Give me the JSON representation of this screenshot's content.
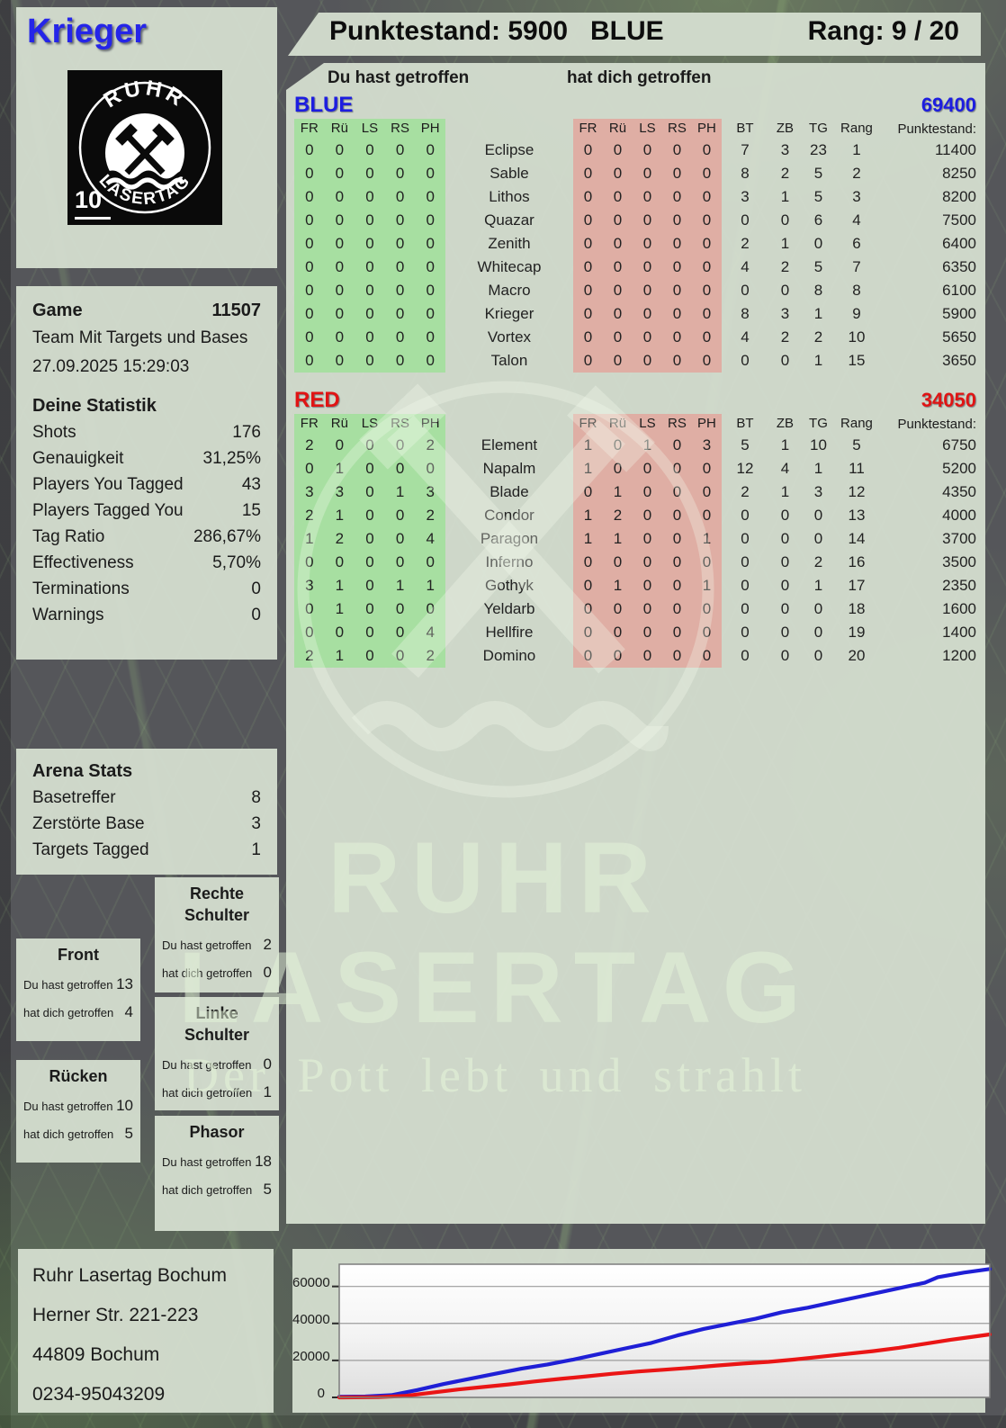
{
  "player": {
    "name": "Krieger",
    "pack_number": "10"
  },
  "logo": {
    "brand_top": "RUHR",
    "brand_bottom": "LASERTAG"
  },
  "header": {
    "punktestand_text": "Punktestand: 5900",
    "team": "BLUE",
    "rang_text": "Rang: 9 / 20"
  },
  "legend": {
    "you_hit": "Du hast getroffen",
    "hit_you": "hat dich getroffen"
  },
  "game_info": {
    "game_label": "Game",
    "game_number": "11507",
    "mode": "Team Mit Targets und Bases",
    "datetime": "27.09.2025 15:29:03"
  },
  "deine_statistik": {
    "title": "Deine Statistik",
    "rows": [
      {
        "label": "Shots",
        "value": "176"
      },
      {
        "label": "Genauigkeit",
        "value": "31,25%"
      },
      {
        "label": "Players You Tagged",
        "value": "43"
      },
      {
        "label": "Players Tagged You",
        "value": "15"
      },
      {
        "label": "Tag Ratio",
        "value": "286,67%"
      },
      {
        "label": "Effectiveness",
        "value": "5,70%"
      },
      {
        "label": "Terminations",
        "value": "0"
      },
      {
        "label": "Warnings",
        "value": "0"
      }
    ]
  },
  "arena_stats": {
    "title": "Arena Stats",
    "rows": [
      {
        "label": "Basetreffer",
        "value": "8"
      },
      {
        "label": "Zerstörte Base",
        "value": "3"
      },
      {
        "label": "Targets Tagged",
        "value": "1"
      }
    ]
  },
  "hit_zones": {
    "you_hit_label": "Du hast getroffen",
    "hit_you_label": "hat dich getroffen",
    "front": {
      "title": "Front",
      "you_hit": "13",
      "hit_you": "4"
    },
    "ruecken": {
      "title": "Rücken",
      "you_hit": "10",
      "hit_you": "5"
    },
    "rechte_schulter": {
      "title": "Rechte Schulter",
      "you_hit": "2",
      "hit_you": "0"
    },
    "linke_schulter": {
      "title": "Linke Schulter",
      "you_hit": "0",
      "hit_you": "1"
    },
    "phasor": {
      "title": "Phasor",
      "you_hit": "18",
      "hit_you": "5"
    }
  },
  "scoreboard": {
    "column_headers": [
      "FR",
      "Rü",
      "LS",
      "RS",
      "PH"
    ],
    "right_headers": [
      "BT",
      "ZB",
      "TG",
      "Rang",
      "Punktestand:"
    ],
    "teams": [
      {
        "name": "BLUE",
        "color": "#1d1de0",
        "total": "69400",
        "players": [
          {
            "name": "Eclipse",
            "you_hit": [
              0,
              0,
              0,
              0,
              0
            ],
            "hit_you": [
              0,
              0,
              0,
              0,
              0
            ],
            "bt": 7,
            "zb": 3,
            "tg": 23,
            "rang": 1,
            "punktestand": "11400"
          },
          {
            "name": "Sable",
            "you_hit": [
              0,
              0,
              0,
              0,
              0
            ],
            "hit_you": [
              0,
              0,
              0,
              0,
              0
            ],
            "bt": 8,
            "zb": 2,
            "tg": 5,
            "rang": 2,
            "punktestand": "8250"
          },
          {
            "name": "Lithos",
            "you_hit": [
              0,
              0,
              0,
              0,
              0
            ],
            "hit_you": [
              0,
              0,
              0,
              0,
              0
            ],
            "bt": 3,
            "zb": 1,
            "tg": 5,
            "rang": 3,
            "punktestand": "8200"
          },
          {
            "name": "Quazar",
            "you_hit": [
              0,
              0,
              0,
              0,
              0
            ],
            "hit_you": [
              0,
              0,
              0,
              0,
              0
            ],
            "bt": 0,
            "zb": 0,
            "tg": 6,
            "rang": 4,
            "punktestand": "7500"
          },
          {
            "name": "Zenith",
            "you_hit": [
              0,
              0,
              0,
              0,
              0
            ],
            "hit_you": [
              0,
              0,
              0,
              0,
              0
            ],
            "bt": 2,
            "zb": 1,
            "tg": 0,
            "rang": 6,
            "punktestand": "6400"
          },
          {
            "name": "Whitecap",
            "you_hit": [
              0,
              0,
              0,
              0,
              0
            ],
            "hit_you": [
              0,
              0,
              0,
              0,
              0
            ],
            "bt": 4,
            "zb": 2,
            "tg": 5,
            "rang": 7,
            "punktestand": "6350"
          },
          {
            "name": "Macro",
            "you_hit": [
              0,
              0,
              0,
              0,
              0
            ],
            "hit_you": [
              0,
              0,
              0,
              0,
              0
            ],
            "bt": 0,
            "zb": 0,
            "tg": 8,
            "rang": 8,
            "punktestand": "6100"
          },
          {
            "name": "Krieger",
            "you_hit": [
              0,
              0,
              0,
              0,
              0
            ],
            "hit_you": [
              0,
              0,
              0,
              0,
              0
            ],
            "bt": 8,
            "zb": 3,
            "tg": 1,
            "rang": 9,
            "punktestand": "5900"
          },
          {
            "name": "Vortex",
            "you_hit": [
              0,
              0,
              0,
              0,
              0
            ],
            "hit_you": [
              0,
              0,
              0,
              0,
              0
            ],
            "bt": 4,
            "zb": 2,
            "tg": 2,
            "rang": 10,
            "punktestand": "5650"
          },
          {
            "name": "Talon",
            "you_hit": [
              0,
              0,
              0,
              0,
              0
            ],
            "hit_you": [
              0,
              0,
              0,
              0,
              0
            ],
            "bt": 0,
            "zb": 0,
            "tg": 1,
            "rang": 15,
            "punktestand": "3650"
          }
        ]
      },
      {
        "name": "RED",
        "color": "#e01414",
        "total": "34050",
        "players": [
          {
            "name": "Element",
            "you_hit": [
              2,
              0,
              0,
              0,
              2
            ],
            "hit_you": [
              1,
              0,
              1,
              0,
              3
            ],
            "bt": 5,
            "zb": 1,
            "tg": 10,
            "rang": 5,
            "punktestand": "6750"
          },
          {
            "name": "Napalm",
            "you_hit": [
              0,
              1,
              0,
              0,
              0
            ],
            "hit_you": [
              1,
              0,
              0,
              0,
              0
            ],
            "bt": 12,
            "zb": 4,
            "tg": 1,
            "rang": 11,
            "punktestand": "5200"
          },
          {
            "name": "Blade",
            "you_hit": [
              3,
              3,
              0,
              1,
              3
            ],
            "hit_you": [
              0,
              1,
              0,
              0,
              0
            ],
            "bt": 2,
            "zb": 1,
            "tg": 3,
            "rang": 12,
            "punktestand": "4350"
          },
          {
            "name": "Condor",
            "you_hit": [
              2,
              1,
              0,
              0,
              2
            ],
            "hit_you": [
              1,
              2,
              0,
              0,
              0
            ],
            "bt": 0,
            "zb": 0,
            "tg": 0,
            "rang": 13,
            "punktestand": "4000"
          },
          {
            "name": "Paragon",
            "you_hit": [
              1,
              2,
              0,
              0,
              4
            ],
            "hit_you": [
              1,
              1,
              0,
              0,
              1
            ],
            "bt": 0,
            "zb": 0,
            "tg": 0,
            "rang": 14,
            "punktestand": "3700"
          },
          {
            "name": "Inferno",
            "you_hit": [
              0,
              0,
              0,
              0,
              0
            ],
            "hit_you": [
              0,
              0,
              0,
              0,
              0
            ],
            "bt": 0,
            "zb": 0,
            "tg": 2,
            "rang": 16,
            "punktestand": "3500"
          },
          {
            "name": "Gothyk",
            "you_hit": [
              3,
              1,
              0,
              1,
              1
            ],
            "hit_you": [
              0,
              1,
              0,
              0,
              1
            ],
            "bt": 0,
            "zb": 0,
            "tg": 1,
            "rang": 17,
            "punktestand": "2350"
          },
          {
            "name": "Yeldarb",
            "you_hit": [
              0,
              1,
              0,
              0,
              0
            ],
            "hit_you": [
              0,
              0,
              0,
              0,
              0
            ],
            "bt": 0,
            "zb": 0,
            "tg": 0,
            "rang": 18,
            "punktestand": "1600"
          },
          {
            "name": "Hellfire",
            "you_hit": [
              0,
              0,
              0,
              0,
              4
            ],
            "hit_you": [
              0,
              0,
              0,
              0,
              0
            ],
            "bt": 0,
            "zb": 0,
            "tg": 0,
            "rang": 19,
            "punktestand": "1400"
          },
          {
            "name": "Domino",
            "you_hit": [
              2,
              1,
              0,
              0,
              2
            ],
            "hit_you": [
              0,
              0,
              0,
              0,
              0
            ],
            "bt": 0,
            "zb": 0,
            "tg": 0,
            "rang": 20,
            "punktestand": "1200"
          }
        ]
      }
    ]
  },
  "watermark": {
    "line1": "RUHR",
    "line2": "LASERTAG",
    "tagline": "Der Pott lebt und strahlt"
  },
  "address": {
    "lines": [
      "Ruhr Lasertag Bochum",
      "Herner Str. 221-223",
      "44809 Bochum",
      "0234-95043209"
    ]
  },
  "chart_data": {
    "type": "line",
    "title": "",
    "xlabel": "",
    "ylabel": "",
    "ylim": [
      0,
      72000
    ],
    "yticks": [
      0,
      20000,
      40000,
      60000
    ],
    "grid": true,
    "legend_position": "none",
    "series": [
      {
        "name": "BLUE",
        "color": "#1f1fd6",
        "points": [
          [
            0,
            400
          ],
          [
            0.04,
            500
          ],
          [
            0.08,
            1200
          ],
          [
            0.12,
            4000
          ],
          [
            0.16,
            7200
          ],
          [
            0.2,
            10000
          ],
          [
            0.24,
            12800
          ],
          [
            0.28,
            15500
          ],
          [
            0.32,
            17800
          ],
          [
            0.36,
            20500
          ],
          [
            0.4,
            23500
          ],
          [
            0.44,
            26500
          ],
          [
            0.48,
            29500
          ],
          [
            0.52,
            33500
          ],
          [
            0.56,
            37000
          ],
          [
            0.6,
            39800
          ],
          [
            0.64,
            42500
          ],
          [
            0.68,
            46000
          ],
          [
            0.72,
            48500
          ],
          [
            0.76,
            51500
          ],
          [
            0.8,
            54500
          ],
          [
            0.84,
            57500
          ],
          [
            0.88,
            60500
          ],
          [
            0.9,
            62000
          ],
          [
            0.92,
            65000
          ],
          [
            0.96,
            67500
          ],
          [
            1,
            69400
          ]
        ]
      },
      {
        "name": "RED",
        "color": "#ea1515",
        "points": [
          [
            0,
            0
          ],
          [
            0.06,
            150
          ],
          [
            0.1,
            800
          ],
          [
            0.14,
            2500
          ],
          [
            0.18,
            4200
          ],
          [
            0.22,
            5600
          ],
          [
            0.26,
            7000
          ],
          [
            0.3,
            8600
          ],
          [
            0.34,
            10000
          ],
          [
            0.38,
            11400
          ],
          [
            0.42,
            12800
          ],
          [
            0.46,
            14000
          ],
          [
            0.5,
            15000
          ],
          [
            0.54,
            16000
          ],
          [
            0.58,
            17200
          ],
          [
            0.62,
            18300
          ],
          [
            0.66,
            19200
          ],
          [
            0.7,
            20500
          ],
          [
            0.74,
            22000
          ],
          [
            0.78,
            23500
          ],
          [
            0.82,
            25000
          ],
          [
            0.86,
            26800
          ],
          [
            0.9,
            29000
          ],
          [
            0.94,
            31200
          ],
          [
            0.97,
            32600
          ],
          [
            1,
            34050
          ]
        ]
      }
    ]
  }
}
